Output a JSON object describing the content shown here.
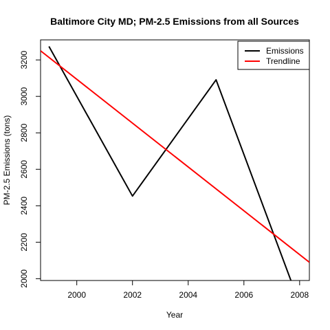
{
  "chart_data": {
    "type": "line",
    "title": "Baltimore City MD; PM-2.5 Emissions from all Sources",
    "xlabel": "Year",
    "ylabel": "PM-2.5 Emissions (tons)",
    "xlim": [
      1998.7,
      2008.35
    ],
    "ylim": [
      1990,
      3310
    ],
    "x_ticks": [
      2000,
      2002,
      2004,
      2006,
      2008
    ],
    "y_ticks": [
      2000,
      2200,
      2400,
      2600,
      2800,
      3000,
      3200
    ],
    "grid": false,
    "legend_position": "top-right",
    "series": [
      {
        "name": "Emissions",
        "color": "#000000",
        "x": [
          1999,
          2002,
          2005,
          2008
        ],
        "y": [
          3274,
          2453,
          3091,
          1862
        ]
      },
      {
        "name": "Trendline",
        "color": "#ff0000",
        "line": {
          "x": [
            1998.7,
            2008.35
          ],
          "y": [
            3250,
            2090
          ]
        }
      }
    ]
  }
}
